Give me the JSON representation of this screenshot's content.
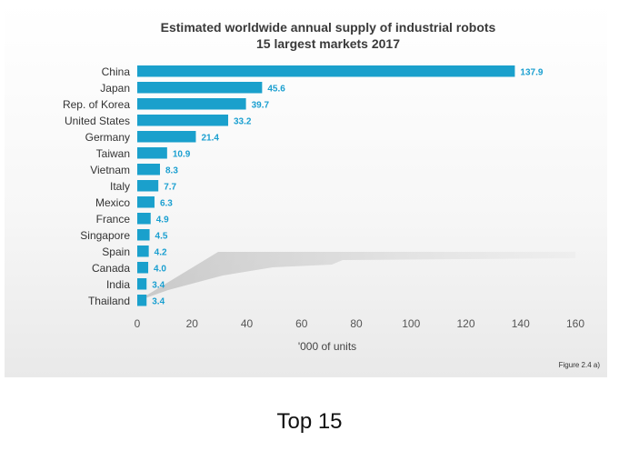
{
  "chart_data": {
    "type": "bar",
    "orientation": "horizontal",
    "title": "Estimated worldwide annual supply of industrial robots",
    "subtitle": "15 largest markets 2017",
    "xlabel": "'000 of units",
    "ylabel": "",
    "categories": [
      "China",
      "Japan",
      "Rep. of Korea",
      "United States",
      "Germany",
      "Taiwan",
      "Vietnam",
      "Italy",
      "Mexico",
      "France",
      "Singapore",
      "Spain",
      "Canada",
      "India",
      "Thailand"
    ],
    "values": [
      137.9,
      45.6,
      39.7,
      33.2,
      21.4,
      10.9,
      8.3,
      7.7,
      6.3,
      4.9,
      4.5,
      4.2,
      4.0,
      3.4,
      3.4
    ],
    "value_labels": [
      "137.9",
      "45.6",
      "39.7",
      "33.2",
      "21.4",
      "10.9",
      "8.3",
      "7.7",
      "6.3",
      "4.9",
      "4.5",
      "4.2",
      "4.0",
      "3.4",
      "3.4"
    ],
    "xlim": [
      0,
      160
    ],
    "xticks": [
      "0",
      "20",
      "40",
      "60",
      "80",
      "100",
      "120",
      "140",
      "160"
    ],
    "grid": false,
    "legend": "none",
    "bar_color": "#1aa0cc",
    "label_color": "#1a9fd0",
    "figure_note": "Figure 2.4 a)"
  },
  "caption": "Top 15"
}
